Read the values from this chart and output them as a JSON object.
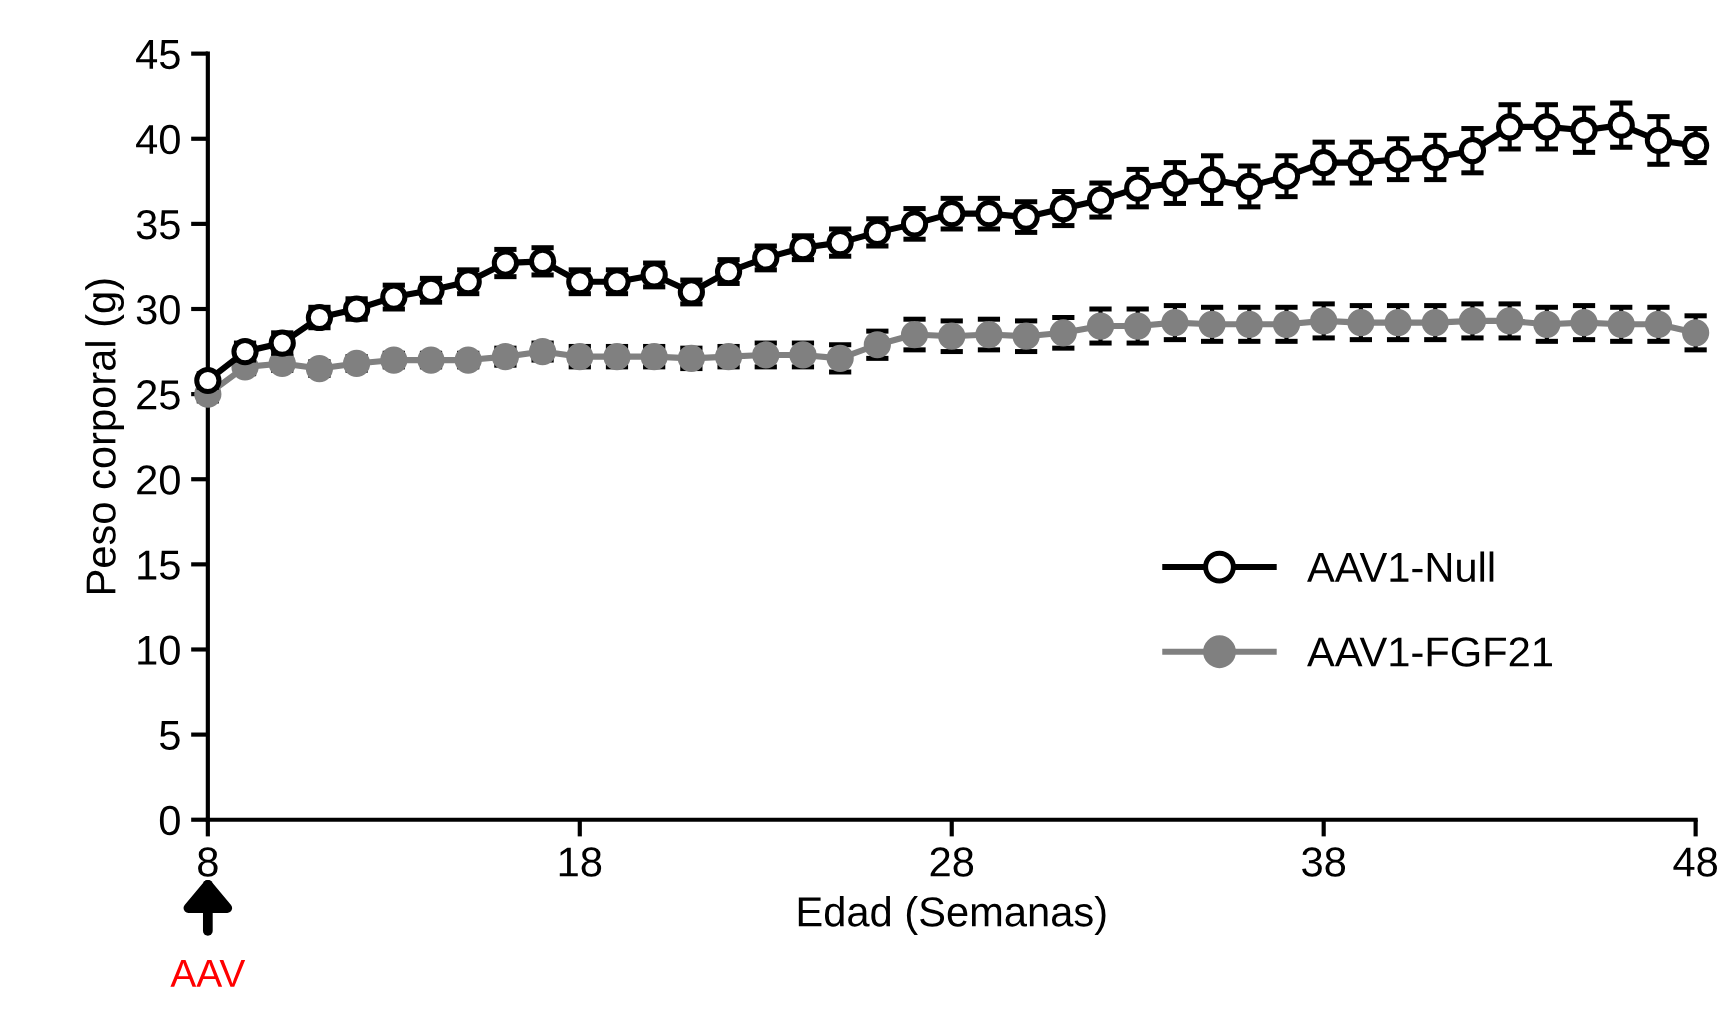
{
  "chart_data": {
    "type": "line",
    "xlabel": "Edad (Semanas)",
    "ylabel": "Peso corporal (g)",
    "x": [
      8,
      9,
      10,
      11,
      12,
      13,
      14,
      15,
      16,
      17,
      18,
      19,
      20,
      21,
      22,
      23,
      24,
      25,
      26,
      27,
      28,
      29,
      30,
      31,
      32,
      33,
      34,
      35,
      36,
      37,
      38,
      39,
      40,
      41,
      42,
      43,
      44,
      45,
      46,
      47,
      48
    ],
    "series": [
      {
        "name": "AAV1-Null",
        "color": "#000000",
        "values": [
          25.8,
          27.5,
          28.0,
          29.5,
          30.0,
          30.7,
          31.1,
          31.6,
          32.7,
          32.8,
          31.6,
          31.6,
          32.0,
          31.0,
          32.2,
          33.0,
          33.6,
          33.9,
          34.5,
          35.0,
          35.6,
          35.6,
          35.4,
          35.9,
          36.4,
          37.1,
          37.4,
          37.6,
          37.2,
          37.8,
          38.6,
          38.6,
          38.8,
          38.9,
          39.3,
          40.7,
          40.7,
          40.5,
          40.8,
          39.9,
          39.6
        ],
        "errors": [
          0.4,
          0.5,
          0.6,
          0.6,
          0.6,
          0.7,
          0.7,
          0.7,
          0.8,
          0.8,
          0.7,
          0.7,
          0.7,
          0.7,
          0.7,
          0.7,
          0.7,
          0.8,
          0.8,
          0.9,
          0.9,
          0.9,
          0.9,
          1.0,
          1.0,
          1.1,
          1.2,
          1.4,
          1.2,
          1.2,
          1.2,
          1.2,
          1.2,
          1.3,
          1.3,
          1.3,
          1.3,
          1.3,
          1.3,
          1.4,
          1.0
        ]
      },
      {
        "name": "AAV1-FGF21",
        "color": "#808080",
        "values": [
          25.0,
          26.6,
          26.8,
          26.5,
          26.8,
          27.0,
          27.0,
          27.0,
          27.2,
          27.5,
          27.2,
          27.2,
          27.2,
          27.1,
          27.2,
          27.3,
          27.3,
          27.1,
          27.9,
          28.5,
          28.4,
          28.5,
          28.4,
          28.6,
          29.0,
          29.0,
          29.2,
          29.1,
          29.1,
          29.1,
          29.3,
          29.2,
          29.2,
          29.2,
          29.3,
          29.3,
          29.1,
          29.2,
          29.1,
          29.1,
          28.6
        ],
        "errors": [
          0.4,
          0.4,
          0.4,
          0.4,
          0.4,
          0.4,
          0.4,
          0.4,
          0.5,
          0.5,
          0.6,
          0.6,
          0.6,
          0.6,
          0.6,
          0.7,
          0.7,
          0.8,
          0.8,
          0.9,
          0.9,
          0.9,
          0.9,
          0.9,
          1.0,
          1.0,
          1.0,
          1.0,
          1.0,
          1.0,
          1.0,
          1.0,
          1.0,
          1.0,
          1.0,
          1.0,
          1.0,
          1.0,
          1.0,
          1.0,
          1.0
        ]
      }
    ],
    "xlim": [
      8,
      48
    ],
    "xticks": [
      8,
      18,
      28,
      38,
      48
    ],
    "ylim": [
      0,
      45
    ],
    "yticks": [
      0,
      5,
      10,
      15,
      20,
      25,
      30,
      35,
      40,
      45
    ],
    "annotations": [
      {
        "text": "AAV",
        "x": 8
      }
    ],
    "grid": false,
    "legend": "bottom right",
    "marker": "circle",
    "line_style": "solid"
  }
}
